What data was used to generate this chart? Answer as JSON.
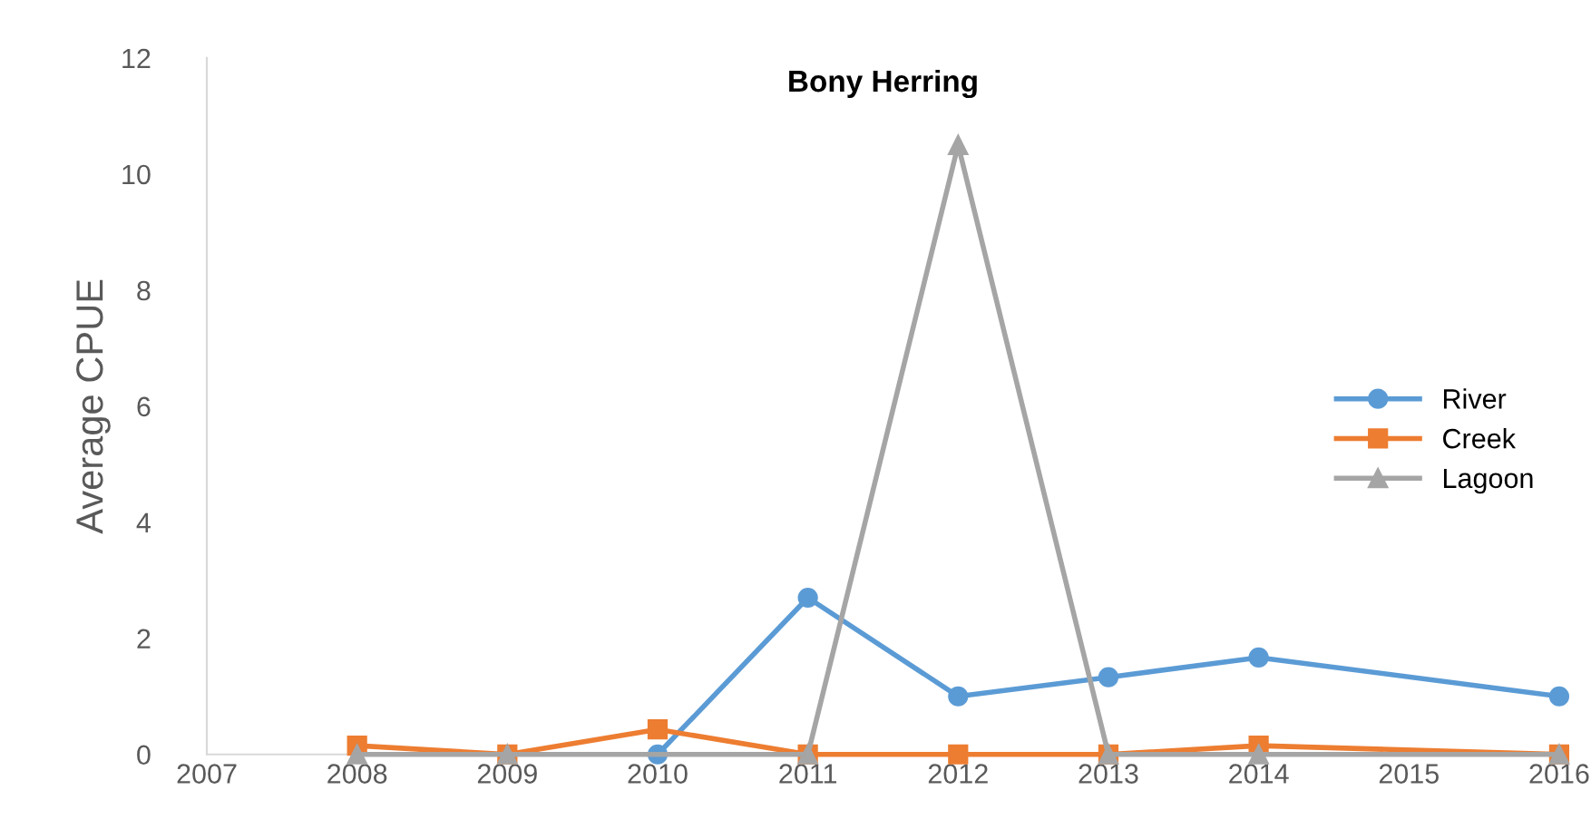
{
  "chart_data": {
    "type": "line",
    "title": "Bony Herring",
    "ylabel": "Average CPUE",
    "xlim": [
      2007,
      2016
    ],
    "xticks": [
      2007,
      2008,
      2009,
      2010,
      2011,
      2012,
      2013,
      2014,
      2015,
      2016
    ],
    "ylim": [
      0,
      12
    ],
    "yticks": [
      0,
      2,
      4,
      6,
      8,
      10,
      12
    ],
    "grid": false,
    "legend": "right",
    "series": [
      {
        "name": "River",
        "color": "#5b9bd5",
        "marker": "circle",
        "x": [
          2010,
          2011,
          2012,
          2013,
          2014,
          2016
        ],
        "values": [
          0,
          2.7,
          1.0,
          1.33,
          1.67,
          1.0
        ]
      },
      {
        "name": "Creek",
        "color": "#ed7d31",
        "marker": "square",
        "x": [
          2008,
          2009,
          2010,
          2011,
          2012,
          2013,
          2014,
          2016
        ],
        "values": [
          0.15,
          0,
          0.43,
          0,
          0,
          0,
          0.15,
          0
        ]
      },
      {
        "name": "Lagoon",
        "color": "#a5a5a5",
        "marker": "triangle",
        "x": [
          2008,
          2009,
          2011,
          2012,
          2013,
          2014,
          2016
        ],
        "values": [
          0,
          0,
          0,
          10.5,
          0,
          0,
          0
        ]
      }
    ]
  }
}
